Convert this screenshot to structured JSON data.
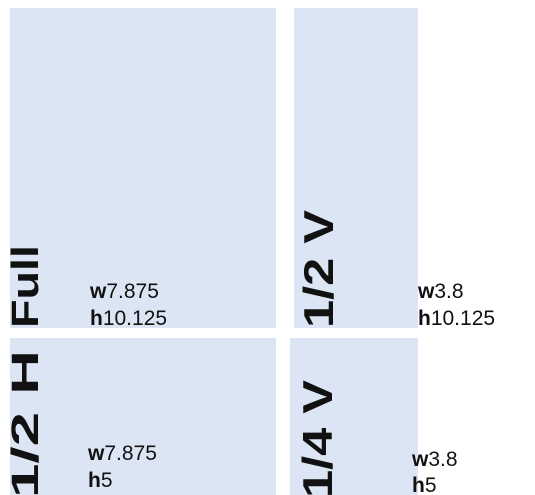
{
  "width_prefix": "w",
  "height_prefix": "h",
  "panels": [
    {
      "label": "Full",
      "width": 7.875,
      "height": 10.125
    },
    {
      "label": "1/2 V",
      "width": 3.8,
      "height": 10.125
    },
    {
      "label": "1/2 H",
      "width": 7.875,
      "height": 5
    },
    {
      "label": "1/4 V",
      "width": 3.8,
      "height": 5
    }
  ]
}
